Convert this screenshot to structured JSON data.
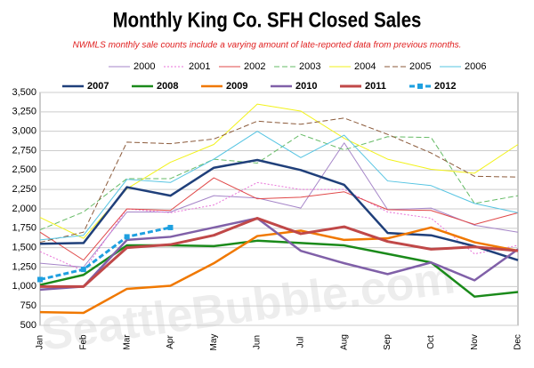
{
  "chart_data": {
    "type": "line",
    "title": "Monthly King Co. SFH Closed Sales",
    "subtitle": "NWMLS monthly sale counts include a varying amount of late-reported  data from previous months.",
    "watermark": "SeattleBubble.com",
    "categories": [
      "Jan",
      "Feb",
      "Mar",
      "Apr",
      "May",
      "Jun",
      "Jul",
      "Aug",
      "Sep",
      "Oct",
      "Nov",
      "Dec"
    ],
    "ylim": [
      500,
      3500
    ],
    "yticks": [
      500,
      750,
      {
        "value": 1000,
        "label": "1,000"
      },
      {
        "value": 1250,
        "label": "1,250"
      },
      {
        "value": 1500,
        "label": "1,500"
      },
      {
        "value": 1750,
        "label": "1,750"
      },
      {
        "value": 2000,
        "label": "2,000"
      },
      {
        "value": 2250,
        "label": "2,250"
      },
      {
        "value": 2500,
        "label": "2,500"
      },
      {
        "value": 2750,
        "label": "2,750"
      },
      {
        "value": 3000,
        "label": "3,000"
      },
      {
        "value": 3250,
        "label": "3,250"
      },
      {
        "value": 3500,
        "label": "3,500"
      }
    ],
    "grid": true,
    "series": [
      {
        "name": "2000",
        "color": "#a585c8",
        "width": 1,
        "dash": "solid",
        "values": [
          1300,
          1250,
          1960,
          1960,
          2170,
          2140,
          2010,
          2850,
          1990,
          2010,
          1790,
          1700
        ]
      },
      {
        "name": "2001",
        "color": "#e872d8",
        "width": 1,
        "dash": "dotted",
        "values": [
          1450,
          1200,
          2000,
          1950,
          2050,
          2340,
          2250,
          2250,
          1960,
          1880,
          1420,
          1530
        ]
      },
      {
        "name": "2002",
        "color": "#e04848",
        "width": 1,
        "dash": "solid",
        "values": [
          1700,
          1340,
          2000,
          1980,
          2400,
          2130,
          2150,
          2220,
          1990,
          1980,
          1800,
          1950
        ]
      },
      {
        "name": "2003",
        "color": "#66bb66",
        "width": 1,
        "dash": "dashed",
        "values": [
          1730,
          1960,
          2390,
          2390,
          2640,
          2590,
          2960,
          2760,
          2930,
          2920,
          2070,
          2170
        ]
      },
      {
        "name": "2004",
        "color": "#f2f21a",
        "width": 1,
        "dash": "solid",
        "values": [
          1890,
          1620,
          2260,
          2600,
          2830,
          3350,
          3260,
          2910,
          2640,
          2510,
          2460,
          2830
        ]
      },
      {
        "name": "2005",
        "color": "#8b5a3a",
        "width": 1,
        "dash": "dashed",
        "values": [
          1570,
          1700,
          2860,
          2840,
          2900,
          3130,
          3090,
          3170,
          2960,
          2720,
          2420,
          2410
        ]
      },
      {
        "name": "2006",
        "color": "#55c4e2",
        "width": 1,
        "dash": "solid",
        "values": [
          1600,
          1660,
          2380,
          2340,
          2640,
          3000,
          2660,
          2950,
          2360,
          2300,
          2070,
          1950
        ]
      },
      {
        "name": "2007",
        "color": "#1f3f7a",
        "width": 2.5,
        "dash": "solid",
        "values": [
          1550,
          1560,
          2280,
          2170,
          2530,
          2630,
          2500,
          2310,
          1690,
          1660,
          1520,
          1340
        ]
      },
      {
        "name": "2008",
        "color": "#1a8a1a",
        "width": 2.5,
        "dash": "solid",
        "values": [
          1020,
          1150,
          1530,
          1530,
          1520,
          1590,
          1560,
          1530,
          1420,
          1310,
          870,
          930
        ]
      },
      {
        "name": "2009",
        "color": "#f07800",
        "width": 2.5,
        "dash": "solid",
        "values": [
          670,
          660,
          970,
          1010,
          1300,
          1650,
          1720,
          1600,
          1620,
          1760,
          1570,
          1460
        ]
      },
      {
        "name": "2010",
        "color": "#8060a8",
        "width": 2.5,
        "dash": "solid",
        "values": [
          960,
          1000,
          1600,
          1640,
          1760,
          1880,
          1460,
          1300,
          1160,
          1310,
          1080,
          1480
        ]
      },
      {
        "name": "2011",
        "color": "#c04848",
        "width": 3,
        "dash": "solid",
        "values": [
          1000,
          1000,
          1500,
          1540,
          1660,
          1880,
          1680,
          1770,
          1580,
          1480,
          1510,
          1460
        ]
      },
      {
        "name": "2012",
        "color": "#1ea0e0",
        "width": 3,
        "dash": "dashed",
        "marker": "square",
        "values": [
          1090,
          1220,
          1640,
          1760,
          null,
          null,
          null,
          null,
          null,
          null,
          null,
          null
        ]
      }
    ]
  }
}
